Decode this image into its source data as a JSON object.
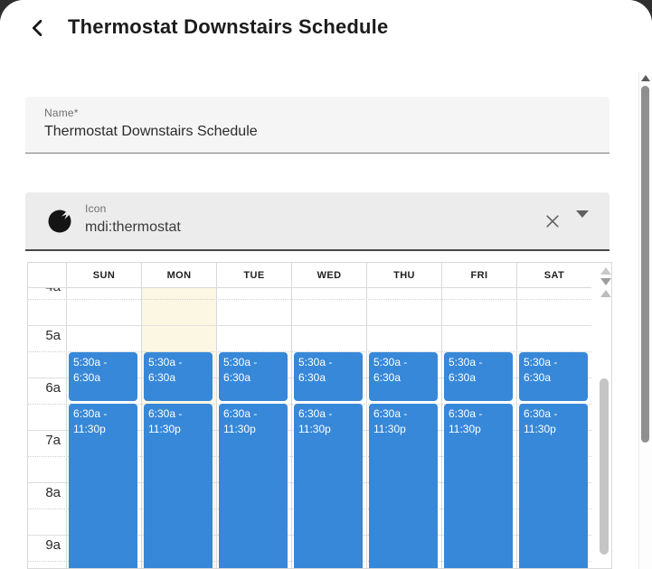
{
  "header": {
    "title": "Thermostat Downstairs Schedule",
    "back_icon": "chevron-left"
  },
  "name_field": {
    "label": "Name*",
    "value": "Thermostat Downstairs Schedule"
  },
  "icon_field": {
    "label": "Icon",
    "value": "mdi:thermostat",
    "leading_icon": "thermostat-icon",
    "clear_icon": "close-icon",
    "dropdown_icon": "dropdown-arrow-icon"
  },
  "calendar": {
    "highlighted_day": "MON",
    "time_labels": [
      "4a",
      "5a",
      "6a",
      "7a",
      "8a",
      "9a"
    ],
    "days": [
      {
        "label": "SUN",
        "events": [
          "5:30a - 6:30a",
          "6:30a - 11:30p"
        ]
      },
      {
        "label": "MON",
        "events": [
          "5:30a - 6:30a",
          "6:30a - 11:30p"
        ]
      },
      {
        "label": "TUE",
        "events": [
          "5:30a - 6:30a",
          "6:30a - 11:30p"
        ]
      },
      {
        "label": "WED",
        "events": [
          "5:30a - 6:30a",
          "6:30a - 11:30p"
        ]
      },
      {
        "label": "THU",
        "events": [
          "5:30a - 6:30a",
          "6:30a - 11:30p"
        ]
      },
      {
        "label": "FRI",
        "events": [
          "5:30a - 6:30a",
          "6:30a - 11:30p"
        ]
      },
      {
        "label": "SAT",
        "events": [
          "5:30a - 6:30a",
          "6:30a - 11:30p"
        ]
      }
    ],
    "colors": {
      "event_blue": "#3788d8",
      "today_background": "#fcf7e2"
    }
  }
}
